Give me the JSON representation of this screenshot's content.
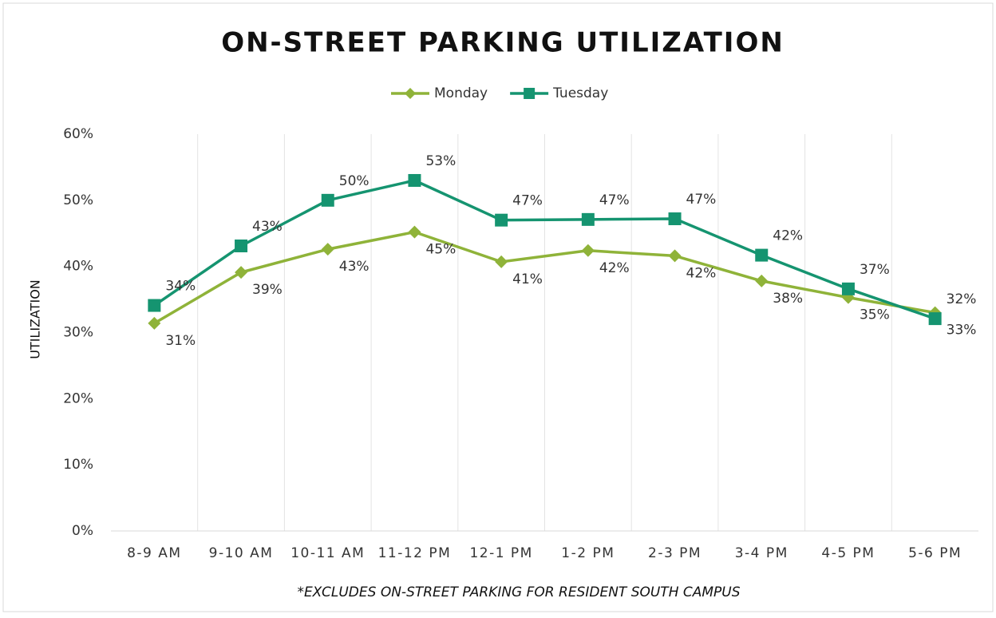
{
  "chart_data": {
    "type": "line",
    "title": "ON-STREET PARKING UTILIZATION",
    "y_label": "UTILIZATION",
    "note": "*EXCLUDES ON-STREET PARKING FOR RESIDENT SOUTH CAMPUS",
    "categories": [
      "8-9 AM",
      "9-10 AM",
      "10-11 AM",
      "11-12 PM",
      "12-1 PM",
      "1-2 PM",
      "2-3 PM",
      "3-4 PM",
      "4-5 PM",
      "5-6 PM"
    ],
    "series": [
      {
        "name": "Monday",
        "color": "#8fb339",
        "marker": "diamond",
        "values": [
          31.4,
          39.1,
          42.6,
          45.2,
          40.7,
          42.4,
          41.6,
          37.8,
          35.3,
          33.0
        ],
        "value_labels": [
          "31%",
          "39%",
          "43%",
          "45%",
          "41%",
          "42%",
          "42%",
          "38%",
          "35%",
          "33%"
        ]
      },
      {
        "name": "Tuesday",
        "color": "#159470",
        "marker": "square",
        "values": [
          34.1,
          43.1,
          50.0,
          53.0,
          47.0,
          47.1,
          47.2,
          41.7,
          36.6,
          32.1
        ],
        "value_labels": [
          "34%",
          "43%",
          "50%",
          "53%",
          "47%",
          "47%",
          "47%",
          "42%",
          "37%",
          "32%"
        ]
      }
    ],
    "ylim": [
      0,
      60
    ],
    "yticks": [
      {
        "value": 0,
        "label": "0%"
      },
      {
        "value": 10,
        "label": "10%"
      },
      {
        "value": 20,
        "label": "20%"
      },
      {
        "value": 30,
        "label": "30%"
      },
      {
        "value": 40,
        "label": "40%"
      },
      {
        "value": 50,
        "label": "50%"
      },
      {
        "value": 60,
        "label": "60%"
      }
    ],
    "legend": "top"
  }
}
